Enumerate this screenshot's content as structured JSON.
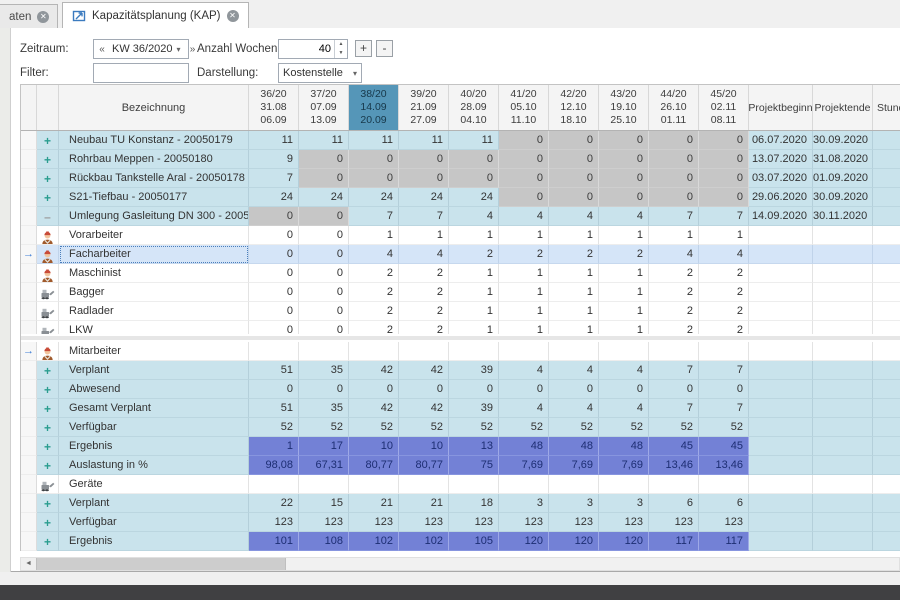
{
  "tabs": [
    {
      "label": "aten",
      "active": false
    },
    {
      "label": "Kapazitätsplanung (KAP)",
      "active": true
    }
  ],
  "icons": {
    "close": "✕",
    "back": "«",
    "forward": "»",
    "caret": "▾",
    "spin_up": "▲",
    "spin_down": "▼",
    "plus": "+",
    "minus": "–",
    "row_arrow": "→",
    "scroll_left": "◄",
    "add": "+",
    "remove": "-"
  },
  "toolbar": {
    "zeitraum_label": "Zeitraum:",
    "zeitraum_value": "KW 36/2020",
    "anzahl_label": "Anzahl Wochen:",
    "anzahl_value": "40",
    "filter_label": "Filter:",
    "filter_value": "",
    "darstellung_label": "Darstellung:",
    "darstellung_value": "Kostenstelle"
  },
  "table": {
    "name_header": "Bezeichnung",
    "weeks": [
      {
        "week": "36/20",
        "from": "31.08",
        "to": "06.09",
        "selected": false
      },
      {
        "week": "37/20",
        "from": "07.09",
        "to": "13.09",
        "selected": false
      },
      {
        "week": "38/20",
        "from": "14.09",
        "to": "20.09",
        "selected": true
      },
      {
        "week": "39/20",
        "from": "21.09",
        "to": "27.09",
        "selected": false
      },
      {
        "week": "40/20",
        "from": "28.09",
        "to": "04.10",
        "selected": false
      },
      {
        "week": "41/20",
        "from": "05.10",
        "to": "11.10",
        "selected": false
      },
      {
        "week": "42/20",
        "from": "12.10",
        "to": "18.10",
        "selected": false
      },
      {
        "week": "43/20",
        "from": "19.10",
        "to": "25.10",
        "selected": false
      },
      {
        "week": "44/20",
        "from": "26.10",
        "to": "01.11",
        "selected": false
      },
      {
        "week": "45/20",
        "from": "02.11",
        "to": "08.11",
        "selected": false
      }
    ],
    "beginn_header": "Projektbeginn",
    "ende_header": "Projektende",
    "stunden_header": "Stunden",
    "upper_rows": [
      {
        "kind": "project",
        "expand": "plus",
        "name": "Neubau TU Konstanz - 20050179",
        "values": [
          "11",
          "11",
          "11",
          "11",
          "11",
          "0",
          "0",
          "0",
          "0",
          "0"
        ],
        "gray": [
          0,
          0,
          0,
          0,
          0,
          1,
          1,
          1,
          1,
          1
        ],
        "beginn": "06.07.2020",
        "ende": "30.09.2020"
      },
      {
        "kind": "project",
        "expand": "plus",
        "name": "Rohrbau Meppen - 20050180",
        "values": [
          "9",
          "0",
          "0",
          "0",
          "0",
          "0",
          "0",
          "0",
          "0",
          "0"
        ],
        "gray": [
          0,
          1,
          1,
          1,
          1,
          1,
          1,
          1,
          1,
          1
        ],
        "beginn": "13.07.2020",
        "ende": "31.08.2020"
      },
      {
        "kind": "project",
        "expand": "plus",
        "name": "Rückbau Tankstelle Aral - 20050178",
        "values": [
          "7",
          "0",
          "0",
          "0",
          "0",
          "0",
          "0",
          "0",
          "0",
          "0"
        ],
        "gray": [
          0,
          1,
          1,
          1,
          1,
          1,
          1,
          1,
          1,
          1
        ],
        "beginn": "03.07.2020",
        "ende": "01.09.2020"
      },
      {
        "kind": "project",
        "expand": "plus",
        "name": "S21-Tiefbau - 20050177",
        "values": [
          "24",
          "24",
          "24",
          "24",
          "24",
          "0",
          "0",
          "0",
          "0",
          "0"
        ],
        "gray": [
          0,
          0,
          0,
          0,
          0,
          1,
          1,
          1,
          1,
          1
        ],
        "beginn": "29.06.2020",
        "ende": "30.09.2020"
      },
      {
        "kind": "project",
        "expand": "minus",
        "name": "Umlegung Gasleitung DN 300 - 20050182",
        "values": [
          "0",
          "0",
          "7",
          "7",
          "4",
          "4",
          "4",
          "4",
          "7",
          "7"
        ],
        "gray": [
          1,
          1,
          0,
          0,
          0,
          0,
          0,
          0,
          0,
          0
        ],
        "beginn": "14.09.2020",
        "ende": "30.11.2020"
      },
      {
        "kind": "resource",
        "icon": "worker",
        "name": "Vorarbeiter",
        "values": [
          "0",
          "0",
          "1",
          "1",
          "1",
          "1",
          "1",
          "1",
          "1",
          "1"
        ]
      },
      {
        "kind": "resource",
        "icon": "worker",
        "name": "Facharbeiter",
        "selected": true,
        "values": [
          "0",
          "0",
          "4",
          "4",
          "2",
          "2",
          "2",
          "2",
          "4",
          "4"
        ]
      },
      {
        "kind": "resource",
        "icon": "worker",
        "name": "Maschinist",
        "values": [
          "0",
          "0",
          "2",
          "2",
          "1",
          "1",
          "1",
          "1",
          "2",
          "2"
        ]
      },
      {
        "kind": "resource",
        "icon": "machine",
        "name": "Bagger",
        "values": [
          "0",
          "0",
          "2",
          "2",
          "1",
          "1",
          "1",
          "1",
          "2",
          "2"
        ]
      },
      {
        "kind": "resource",
        "icon": "machine",
        "name": "Radlader",
        "values": [
          "0",
          "0",
          "2",
          "2",
          "1",
          "1",
          "1",
          "1",
          "2",
          "2"
        ]
      },
      {
        "kind": "resource",
        "icon": "machine",
        "name": "LKW",
        "values": [
          "0",
          "0",
          "2",
          "2",
          "1",
          "1",
          "1",
          "1",
          "2",
          "2"
        ]
      }
    ],
    "lower_rows": [
      {
        "kind": "group",
        "icon": "worker",
        "name": "Mitarbeiter",
        "arrow": true
      },
      {
        "kind": "sum",
        "expand": "plus",
        "name": "Verplant",
        "values": [
          "51",
          "35",
          "42",
          "42",
          "39",
          "4",
          "4",
          "4",
          "7",
          "7"
        ]
      },
      {
        "kind": "sum",
        "expand": "plus",
        "name": "Abwesend",
        "values": [
          "0",
          "0",
          "0",
          "0",
          "0",
          "0",
          "0",
          "0",
          "0",
          "0"
        ]
      },
      {
        "kind": "sum",
        "expand": "plus",
        "name": "Gesamt Verplant",
        "values": [
          "51",
          "35",
          "42",
          "42",
          "39",
          "4",
          "4",
          "4",
          "7",
          "7"
        ]
      },
      {
        "kind": "sum",
        "expand": "plus",
        "name": "Verfügbar",
        "values": [
          "52",
          "52",
          "52",
          "52",
          "52",
          "52",
          "52",
          "52",
          "52",
          "52"
        ]
      },
      {
        "kind": "sum",
        "expand": "plus",
        "name": "Ergebnis",
        "highlight": true,
        "values": [
          "1",
          "17",
          "10",
          "10",
          "13",
          "48",
          "48",
          "48",
          "45",
          "45"
        ]
      },
      {
        "kind": "sum",
        "expand": "plus",
        "name": "Auslastung in %",
        "highlight": true,
        "values": [
          "98,08",
          "67,31",
          "80,77",
          "80,77",
          "75",
          "7,69",
          "7,69",
          "7,69",
          "13,46",
          "13,46"
        ]
      },
      {
        "kind": "group",
        "icon": "machine",
        "name": "Geräte"
      },
      {
        "kind": "sum",
        "expand": "plus",
        "name": "Verplant",
        "values": [
          "22",
          "15",
          "21",
          "21",
          "18",
          "3",
          "3",
          "3",
          "6",
          "6"
        ]
      },
      {
        "kind": "sum",
        "expand": "plus",
        "name": "Verfügbar",
        "values": [
          "123",
          "123",
          "123",
          "123",
          "123",
          "123",
          "123",
          "123",
          "123",
          "123"
        ]
      },
      {
        "kind": "sum",
        "expand": "plus",
        "name": "Ergebnis",
        "highlight": true,
        "values": [
          "101",
          "108",
          "102",
          "102",
          "105",
          "120",
          "120",
          "120",
          "117",
          "117"
        ]
      }
    ]
  },
  "colors": {
    "accent_week_header": "#5596b8",
    "project_row": "#c9e3ec",
    "inactive_cell": "#c6c6c6",
    "result_cell": "#7381d6",
    "selected_row": "#d5e5f8",
    "expand_plus": "#2a9d8f"
  }
}
